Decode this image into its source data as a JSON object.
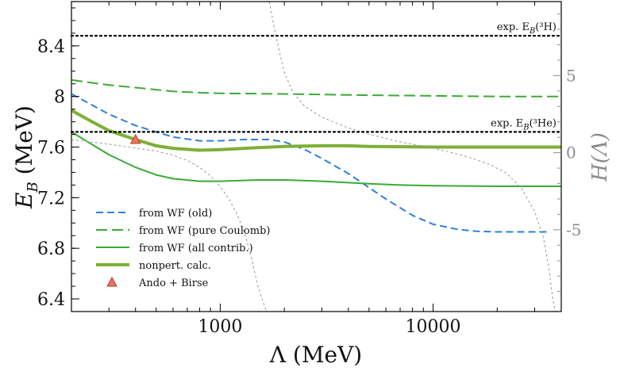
{
  "chart_data": {
    "type": "line",
    "xscale": "log",
    "xlim": [
      200,
      40000
    ],
    "ylim": [
      6.3,
      8.75
    ],
    "y2lim": [
      -10.3,
      9.8
    ],
    "xlabel": "Λ (MeV)",
    "ylabel_main": "E",
    "ylabel_sub": "B",
    "ylabel_rest": " (MeV)",
    "y2label": "H(Λ)",
    "xticks": [
      {
        "value": 1000,
        "label": "1000"
      },
      {
        "value": 10000,
        "label": "10000"
      }
    ],
    "yticks": [
      {
        "value": 6.4,
        "label": "6.4"
      },
      {
        "value": 6.8,
        "label": "6.8"
      },
      {
        "value": 7.2,
        "label": "7.2"
      },
      {
        "value": 7.6,
        "label": "7.6"
      },
      {
        "value": 8.0,
        "label": "8"
      },
      {
        "value": 8.4,
        "label": "8.4"
      }
    ],
    "y2ticks": [
      {
        "value": 5,
        "label": "5"
      },
      {
        "value": 0,
        "label": "0"
      },
      {
        "value": -5,
        "label": "-5"
      }
    ],
    "hlines": [
      {
        "value": 8.48,
        "label_pre": "exp. E",
        "label_sub": "B",
        "label_post": "(³H)",
        "color": "#000000"
      },
      {
        "value": 7.72,
        "label_pre": "exp. E",
        "label_sub": "B",
        "label_post": "(³He)",
        "color": "#000000"
      }
    ],
    "series": [
      {
        "name": "from WF (old)",
        "color": "#2f7fdd",
        "style": "dash",
        "width": 2,
        "points": [
          [
            200,
            8.02
          ],
          [
            300,
            7.86
          ],
          [
            400,
            7.77
          ],
          [
            500,
            7.72
          ],
          [
            600,
            7.68
          ],
          [
            800,
            7.65
          ],
          [
            1000,
            7.65
          ],
          [
            1300,
            7.66
          ],
          [
            1700,
            7.66
          ],
          [
            2000,
            7.64
          ],
          [
            2500,
            7.58
          ],
          [
            3000,
            7.51
          ],
          [
            4000,
            7.39
          ],
          [
            5000,
            7.28
          ],
          [
            6000,
            7.19
          ],
          [
            8000,
            7.06
          ],
          [
            10000,
            6.99
          ],
          [
            13000,
            6.95
          ],
          [
            16000,
            6.935
          ],
          [
            20000,
            6.93
          ],
          [
            30000,
            6.93
          ],
          [
            35000,
            6.93
          ]
        ]
      },
      {
        "name": "from WF (pure Coulomb)",
        "color": "#3aaa35",
        "style": "longdash",
        "width": 2,
        "points": [
          [
            200,
            8.13
          ],
          [
            300,
            8.09
          ],
          [
            400,
            8.07
          ],
          [
            600,
            8.04
          ],
          [
            800,
            8.03
          ],
          [
            1000,
            8.025
          ],
          [
            2000,
            8.02
          ],
          [
            5000,
            8.01
          ],
          [
            10000,
            8.005
          ],
          [
            20000,
            8.0
          ],
          [
            40000,
            8.0
          ]
        ]
      },
      {
        "name": "from WF (all contrib.)",
        "color": "#3aaa35",
        "style": "solid",
        "width": 2,
        "points": [
          [
            200,
            7.72
          ],
          [
            250,
            7.62
          ],
          [
            300,
            7.54
          ],
          [
            400,
            7.44
          ],
          [
            500,
            7.38
          ],
          [
            600,
            7.35
          ],
          [
            800,
            7.33
          ],
          [
            1000,
            7.33
          ],
          [
            1500,
            7.34
          ],
          [
            2000,
            7.34
          ],
          [
            3000,
            7.33
          ],
          [
            5000,
            7.31
          ],
          [
            7000,
            7.3
          ],
          [
            10000,
            7.295
          ],
          [
            20000,
            7.29
          ],
          [
            40000,
            7.29
          ]
        ]
      },
      {
        "name": "nonpert. calc.",
        "color": "#7db035",
        "style": "solid",
        "width": 4,
        "points": [
          [
            200,
            7.89
          ],
          [
            250,
            7.8
          ],
          [
            300,
            7.73
          ],
          [
            400,
            7.66
          ],
          [
            500,
            7.61
          ],
          [
            600,
            7.59
          ],
          [
            800,
            7.575
          ],
          [
            1000,
            7.58
          ],
          [
            1500,
            7.595
          ],
          [
            2000,
            7.605
          ],
          [
            3000,
            7.61
          ],
          [
            4000,
            7.61
          ],
          [
            5000,
            7.605
          ],
          [
            10000,
            7.6
          ],
          [
            20000,
            7.6
          ],
          [
            40000,
            7.6
          ]
        ]
      },
      {
        "name": "H(Λ) left branch",
        "color": "#9a9a9a",
        "style": "dot",
        "width": 1,
        "axis": "right",
        "legend": false,
        "points": [
          [
            200,
            0.85
          ],
          [
            300,
            0.55
          ],
          [
            400,
            0.3
          ],
          [
            500,
            0.1
          ],
          [
            600,
            -0.15
          ],
          [
            700,
            -0.5
          ],
          [
            800,
            -0.95
          ],
          [
            900,
            -1.5
          ],
          [
            1000,
            -2.2
          ],
          [
            1100,
            -3.0
          ],
          [
            1200,
            -4.0
          ],
          [
            1300,
            -5.2
          ],
          [
            1400,
            -6.8
          ],
          [
            1500,
            -8.6
          ],
          [
            1600,
            -9.8
          ],
          [
            1650,
            -10.3
          ]
        ]
      },
      {
        "name": "H(Λ) right branch",
        "color": "#9a9a9a",
        "style": "dot",
        "width": 1,
        "axis": "right",
        "legend": false,
        "points": [
          [
            1700,
            9.8
          ],
          [
            1800,
            8.0
          ],
          [
            1900,
            6.5
          ],
          [
            2000,
            5.2
          ],
          [
            2200,
            3.9
          ],
          [
            2500,
            3.0
          ],
          [
            3000,
            2.3
          ],
          [
            4000,
            1.6
          ],
          [
            5000,
            1.2
          ],
          [
            7000,
            0.7
          ],
          [
            10000,
            0.3
          ],
          [
            14000,
            -0.2
          ],
          [
            18000,
            -0.7
          ],
          [
            22000,
            -1.3
          ],
          [
            26000,
            -2.3
          ],
          [
            30000,
            -3.8
          ],
          [
            33000,
            -5.5
          ],
          [
            35000,
            -7.5
          ],
          [
            36500,
            -9.5
          ],
          [
            37500,
            -10.3
          ]
        ]
      }
    ],
    "markers": [
      {
        "name": "Ando + Birse",
        "x": 400,
        "y": 7.66,
        "shape": "triangle",
        "fill": "#e8765f",
        "stroke": "#c0392b"
      }
    ],
    "legend": {
      "position": "lower-left",
      "entries": [
        {
          "label": "from WF (old)",
          "color": "#2f7fdd",
          "style": "dash",
          "width": 2
        },
        {
          "label": "from WF (pure Coulomb)",
          "color": "#3aaa35",
          "style": "longdash",
          "width": 2
        },
        {
          "label": "from WF (all contrib.)",
          "color": "#3aaa35",
          "style": "solid",
          "width": 2
        },
        {
          "label": "nonpert. calc.",
          "color": "#7db035",
          "style": "solid",
          "width": 4
        },
        {
          "label": "Ando + Birse",
          "color": "#e8765f",
          "style": "triangle",
          "width": 1
        }
      ]
    }
  }
}
